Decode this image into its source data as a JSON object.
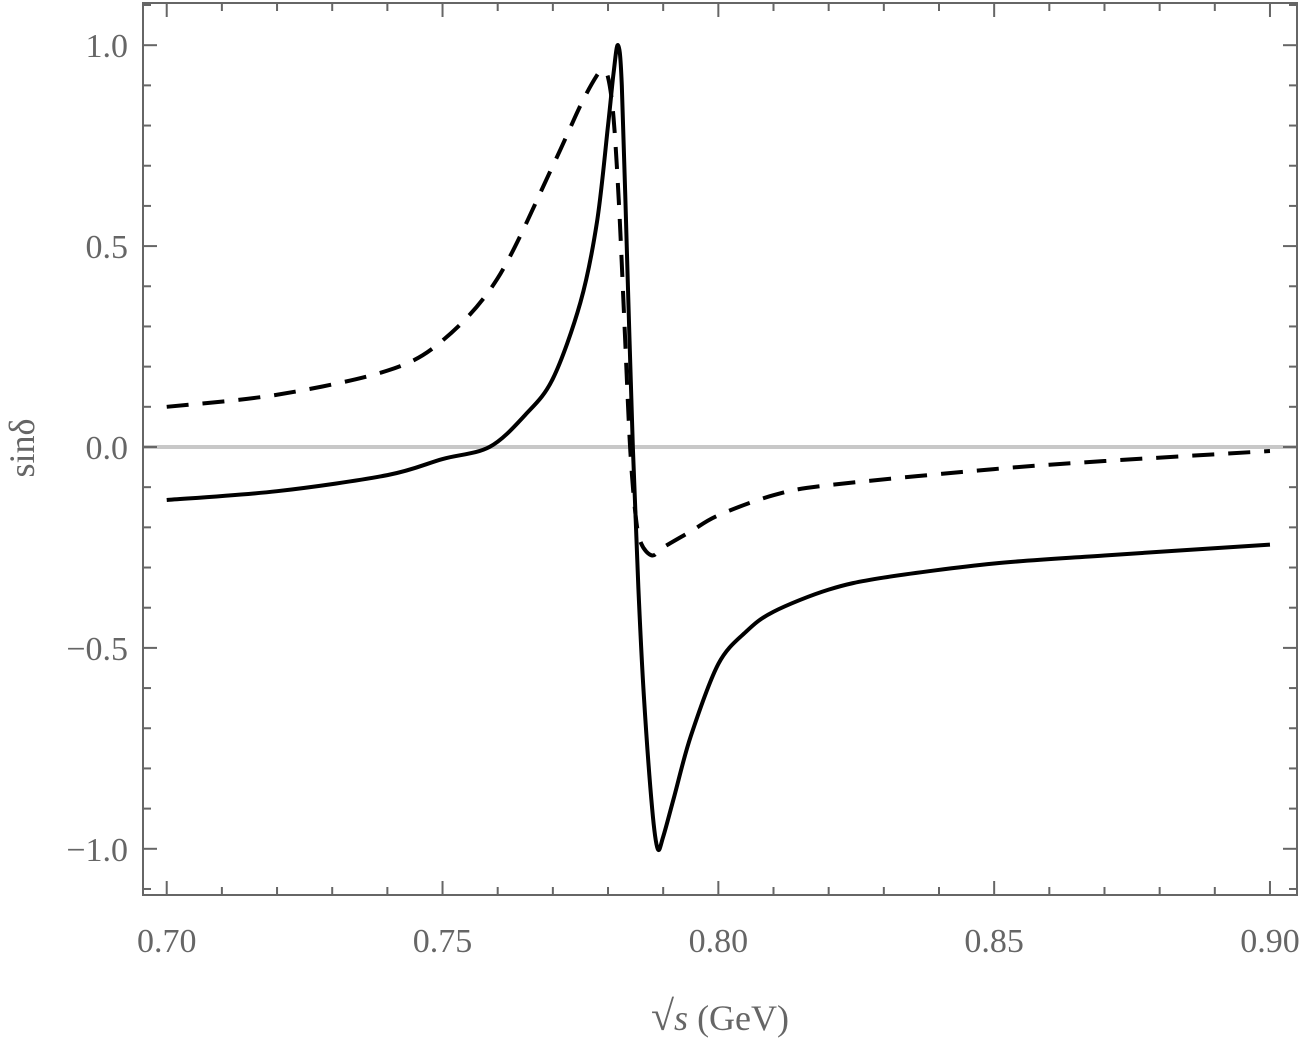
{
  "chart_data": {
    "type": "line",
    "title": "",
    "xlabel": "√s (GeV)",
    "xlabel_parts": {
      "root": "√",
      "var": "s",
      "unit": " (GeV)"
    },
    "ylabel": "sinδ",
    "xlim": [
      0.6957,
      0.9049
    ],
    "ylim": [
      -1.115,
      1.105
    ],
    "x_ticks": [
      0.7,
      0.75,
      0.8,
      0.85,
      0.9
    ],
    "x_tick_labels": [
      "0.70",
      "0.75",
      "0.80",
      "0.85",
      "0.90"
    ],
    "y_ticks": [
      -1.0,
      -0.5,
      0.0,
      0.5,
      1.0
    ],
    "y_tick_labels": [
      "−1.0",
      "−0.5",
      "0.0",
      "0.5",
      "1.0"
    ],
    "grid": false,
    "zero_line": true,
    "colors": {
      "axis": "#666666",
      "zero_line": "#c8c8c8",
      "series": "#000000"
    },
    "series": [
      {
        "style": "solid",
        "x": [
          0.7,
          0.72,
          0.74,
          0.75,
          0.7585,
          0.765,
          0.77,
          0.775,
          0.778,
          0.78,
          0.781,
          0.7818,
          0.7825,
          0.7835,
          0.7845,
          0.7855,
          0.7865,
          0.788,
          0.789,
          0.79,
          0.792,
          0.795,
          0.8,
          0.805,
          0.81,
          0.82,
          0.83,
          0.85,
          0.87,
          0.9
        ],
        "y": [
          -0.132,
          -0.11,
          -0.07,
          -0.03,
          0.0,
          0.08,
          0.17,
          0.36,
          0.56,
          0.8,
          0.93,
          1.0,
          0.9,
          0.45,
          0.0,
          -0.35,
          -0.62,
          -0.9,
          -1.0,
          -0.97,
          -0.87,
          -0.72,
          -0.54,
          -0.46,
          -0.41,
          -0.355,
          -0.325,
          -0.29,
          -0.27,
          -0.243
        ]
      },
      {
        "style": "dashed",
        "x": [
          0.7,
          0.72,
          0.74,
          0.75,
          0.76,
          0.77,
          0.775,
          0.778,
          0.779,
          0.78,
          0.781,
          0.782,
          0.783,
          0.784,
          0.785,
          0.786,
          0.788,
          0.79,
          0.795,
          0.8,
          0.81,
          0.82,
          0.85,
          0.87,
          0.9
        ],
        "y": [
          0.1,
          0.13,
          0.19,
          0.265,
          0.42,
          0.7,
          0.85,
          0.925,
          0.935,
          0.92,
          0.82,
          0.6,
          0.3,
          0.0,
          -0.17,
          -0.24,
          -0.27,
          -0.25,
          -0.21,
          -0.17,
          -0.12,
          -0.095,
          -0.055,
          -0.035,
          -0.01
        ]
      }
    ]
  }
}
